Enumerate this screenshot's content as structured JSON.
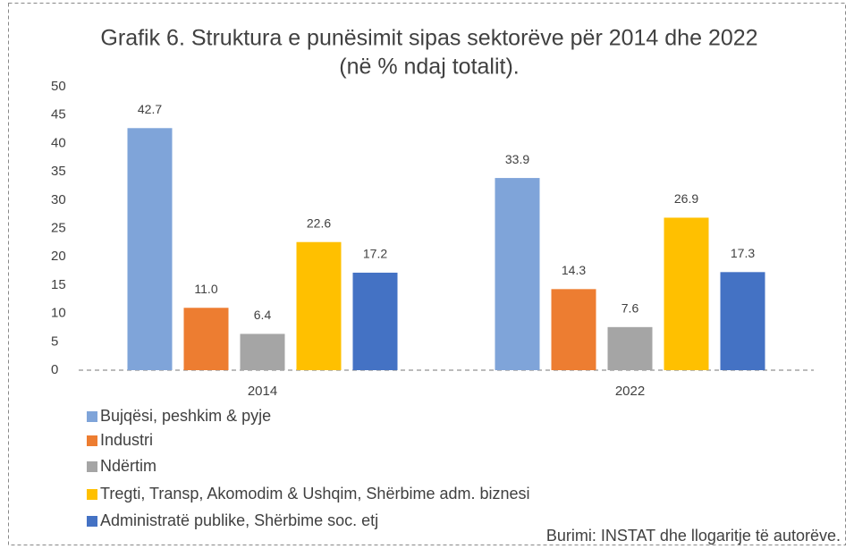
{
  "chart_data": {
    "type": "bar",
    "title": "Grafik 6. Struktura e punësimit sipas sektorëve për 2014 dhe 2022",
    "subtitle": "(në % ndaj totalit).",
    "categories": [
      "2014",
      "2022"
    ],
    "series": [
      {
        "name": "Bujqësi, peshkim & pyje",
        "color": "#7fa4d9",
        "values": [
          42.7,
          33.9
        ],
        "value_labels": [
          "42.7",
          "33.9"
        ]
      },
      {
        "name": "Industri",
        "color": "#ed7d31",
        "values": [
          11.0,
          14.3
        ],
        "value_labels": [
          "11.0",
          "14.3"
        ]
      },
      {
        "name": "Ndërtim",
        "color": "#a5a5a5",
        "values": [
          6.4,
          7.6
        ],
        "value_labels": [
          "6.4",
          "7.6"
        ]
      },
      {
        "name": "Tregti, Transp, Akomodim & Ushqim, Shërbime adm. biznesi",
        "color": "#ffc000",
        "values": [
          22.6,
          26.9
        ],
        "value_labels": [
          "22.6",
          "26.9"
        ]
      },
      {
        "name": "Administratë publike, Shërbime soc. etj",
        "color": "#4472c4",
        "values": [
          17.2,
          17.3
        ],
        "value_labels": [
          "17.2",
          "17.3"
        ]
      }
    ],
    "ylim": [
      0,
      50
    ],
    "yticks": [
      0,
      5,
      10,
      15,
      20,
      25,
      30,
      35,
      40,
      45,
      50
    ],
    "grid": false,
    "legend": "bottom-left",
    "source": "Burimi: INSTAT dhe llogaritje të autorëve."
  }
}
